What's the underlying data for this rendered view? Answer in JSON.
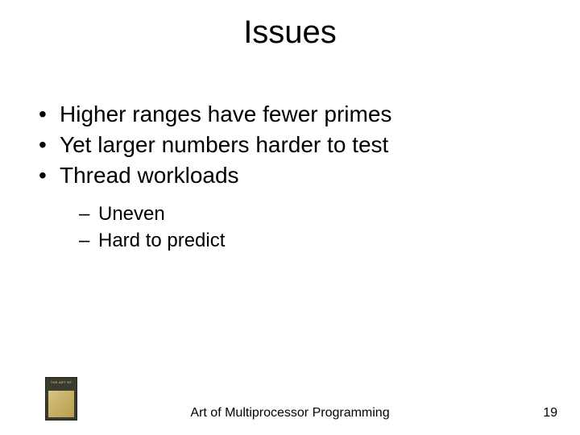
{
  "title": "Issues",
  "bullets": {
    "b1": "Higher ranges have fewer primes",
    "b2": "Yet larger numbers harder to test",
    "b3": "Thread workloads",
    "sub1": "Uneven",
    "sub2": "Hard to predict"
  },
  "footer": {
    "text": "Art of Multiprocessor Programming",
    "page": "19"
  },
  "style": {
    "background": "#ffffff",
    "text_color": "#000000",
    "title_fontsize": 40,
    "bullet_fontsize": 28,
    "subbullet_fontsize": 24,
    "footer_fontsize": 16
  }
}
